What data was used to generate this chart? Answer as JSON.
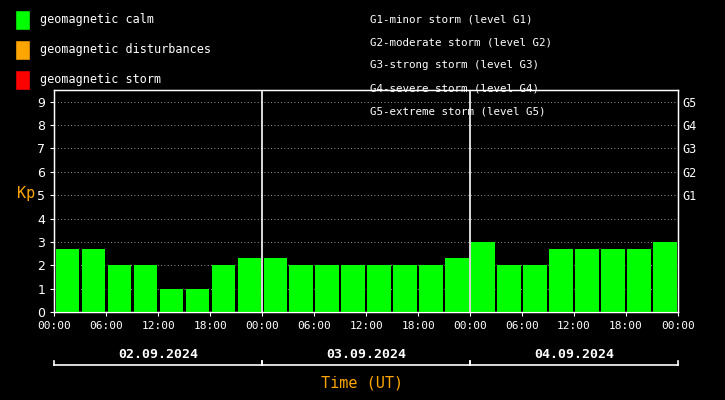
{
  "background_color": "#000000",
  "plot_bg_color": "#000000",
  "bar_color": "#00ff00",
  "grid_color": "#ffffff",
  "text_color": "#ffffff",
  "xlabel_color": "#ffa500",
  "ylabel_color": "#ffa500",
  "axis_color": "#ffffff",
  "days": [
    "02.09.2024",
    "03.09.2024",
    "04.09.2024"
  ],
  "kp_values": [
    [
      2.7,
      2.7,
      2.0,
      2.0,
      1.0,
      1.0,
      2.0,
      2.3
    ],
    [
      2.3,
      2.0,
      2.0,
      2.0,
      2.0,
      2.0,
      2.0,
      2.3
    ],
    [
      3.0,
      2.0,
      2.0,
      2.7,
      2.7,
      2.7,
      2.7,
      3.0
    ]
  ],
  "yticks": [
    0,
    1,
    2,
    3,
    4,
    5,
    6,
    7,
    8,
    9
  ],
  "ylim": [
    0,
    9.5
  ],
  "g_labels": [
    "G5",
    "G4",
    "G3",
    "G2",
    "G1"
  ],
  "g_yvals": [
    9,
    8,
    7,
    6,
    5
  ],
  "legend_entries": [
    {
      "label": "geomagnetic calm",
      "color": "#00ff00"
    },
    {
      "label": "geomagnetic disturbances",
      "color": "#ffa500"
    },
    {
      "label": "geomagnetic storm",
      "color": "#ff0000"
    }
  ],
  "storm_legend": [
    "G1-minor storm (level G1)",
    "G2-moderate storm (level G2)",
    "G3-strong storm (level G3)",
    "G4-severe storm (level G4)",
    "G5-extreme storm (level G5)"
  ],
  "xlabel": "Time (UT)",
  "ylabel": "Kp",
  "font_family": "monospace"
}
